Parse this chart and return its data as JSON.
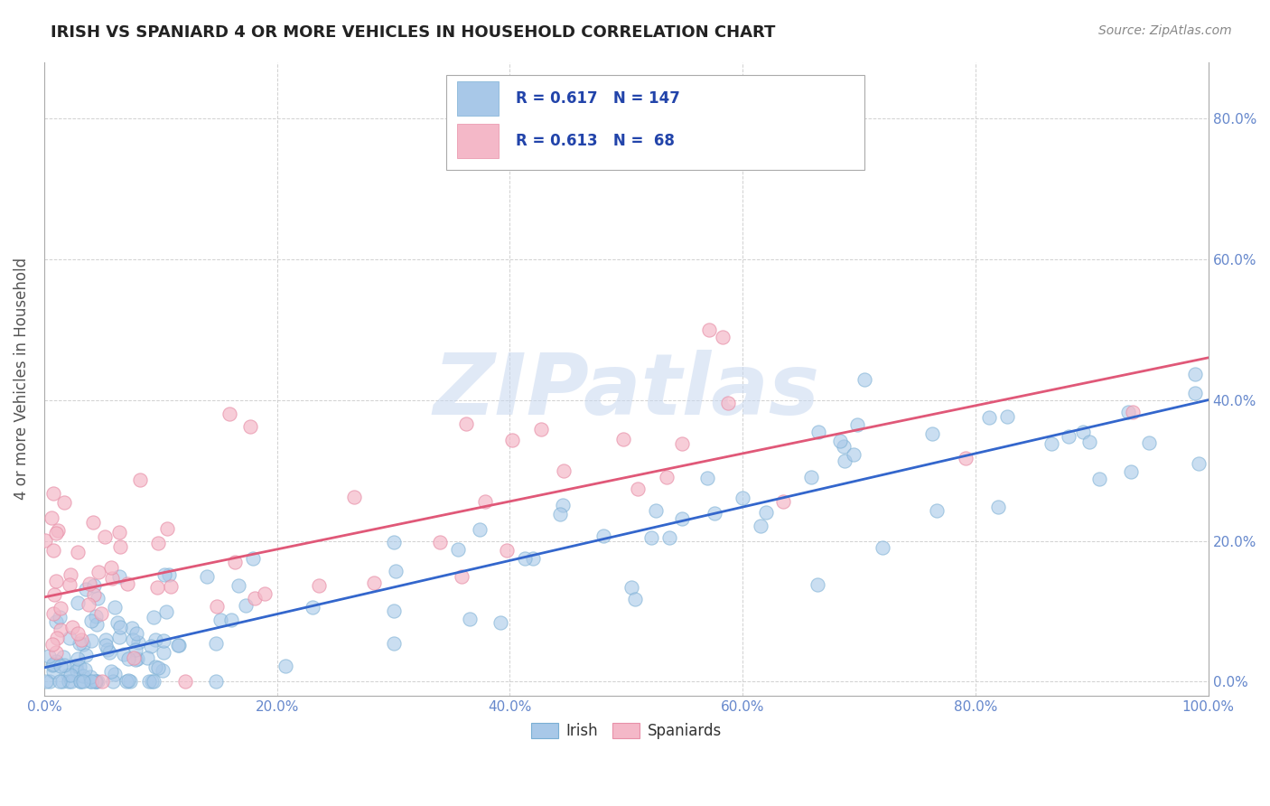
{
  "title": "IRISH VS SPANIARD 4 OR MORE VEHICLES IN HOUSEHOLD CORRELATION CHART",
  "source": "Source: ZipAtlas.com",
  "ylabel": "4 or more Vehicles in Household",
  "xlim": [
    0,
    100
  ],
  "ylim": [
    -2,
    88
  ],
  "xticks": [
    0,
    20,
    40,
    60,
    80,
    100
  ],
  "yticks": [
    0,
    20,
    40,
    60,
    80
  ],
  "xticklabels": [
    "0.0%",
    "20.0%",
    "40.0%",
    "60.0%",
    "80.0%",
    "100.0%"
  ],
  "yticklabels_right": [
    "0.0%",
    "20.0%",
    "40.0%",
    "60.0%",
    "80.0%"
  ],
  "irish_color": "#a8c8e8",
  "irish_edge_color": "#7aafd4",
  "spaniard_color": "#f4b8c8",
  "spaniard_edge_color": "#e890a8",
  "irish_line_color": "#3366cc",
  "spaniard_line_color": "#e05878",
  "irish_R": 0.617,
  "irish_N": 147,
  "spaniard_R": 0.613,
  "spaniard_N": 68,
  "irish_line_x0": 0,
  "irish_line_y0": 2.0,
  "irish_line_x1": 100,
  "irish_line_y1": 40.0,
  "spaniard_line_x0": 0,
  "spaniard_line_y0": 12.0,
  "spaniard_line_x1": 100,
  "spaniard_line_y1": 46.0,
  "watermark": "ZIPatlas",
  "background_color": "#ffffff",
  "grid_color": "#cccccc",
  "legend_text_color": "#2244aa",
  "title_color": "#222222",
  "source_color": "#888888",
  "axis_label_color": "#555555",
  "tick_color": "#6688cc"
}
